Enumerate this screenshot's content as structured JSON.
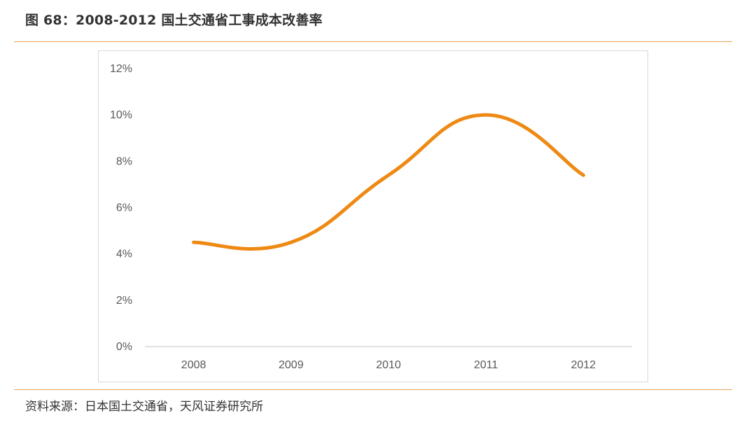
{
  "figure": {
    "title": "图 68：2008-2012 国土交通省工事成本改善率",
    "source": "资料来源：日本国土交通省，天风证券研究所"
  },
  "colors": {
    "line": "#ee8a14",
    "rule": "#e8a25a",
    "axis": "#d9d9d9"
  },
  "chart_data": {
    "type": "line",
    "title": "",
    "xlabel": "",
    "ylabel": "",
    "categories": [
      "2008",
      "2009",
      "2010",
      "2011",
      "2012"
    ],
    "series": [
      {
        "values": [
          4.5,
          4.5,
          7.4,
          10.0,
          7.4
        ]
      }
    ],
    "ylim": [
      0,
      12
    ],
    "yticks": [
      0,
      2,
      4,
      6,
      8,
      10,
      12
    ],
    "ytick_labels": [
      "0%",
      "2%",
      "4%",
      "6%",
      "8%",
      "10%",
      "12%"
    ],
    "smooth": true,
    "grid": false,
    "legend": "none"
  }
}
